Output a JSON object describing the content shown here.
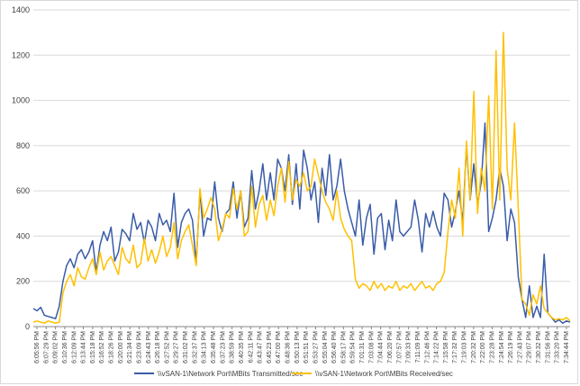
{
  "chart_data": {
    "type": "line",
    "title": "",
    "xlabel": "",
    "ylabel": "",
    "ylim": [
      0,
      1400
    ],
    "yticks": [
      0,
      200,
      400,
      600,
      800,
      1000,
      1200,
      1400
    ],
    "grid": true,
    "legend": "bottom",
    "x_tick_labels": [
      "6:05:56 PM",
      "6:07:29 PM",
      "6:09:02 PM",
      "6:10:36 PM",
      "6:12:09 PM",
      "6:13:44 PM",
      "6:15:18 PM",
      "6:16:52 PM",
      "6:18:26 PM",
      "6:20:00 PM",
      "6:21:34 PM",
      "6:23:09 PM",
      "6:24:43 PM",
      "6:26:18 PM",
      "6:27:52 PM",
      "6:29:27 PM",
      "6:31:02 PM",
      "6:32:37 PM",
      "6:34:13 PM",
      "6:35:48 PM",
      "6:37:23 PM",
      "6:38:59 PM",
      "6:40:35 PM",
      "6:42:11 PM",
      "6:43:47 PM",
      "6:45:23 PM",
      "6:47:00 PM",
      "6:48:36 PM",
      "6:50:13 PM",
      "6:51:51 PM",
      "6:53:27 PM",
      "6:55:04 PM",
      "6:56:40 PM",
      "6:58:17 PM",
      "6:59:54 PM",
      "7:01:31 PM",
      "7:03:08 PM",
      "7:04:44 PM",
      "7:06:20 PM",
      "7:07:57 PM",
      "7:09:33 PM",
      "7:11:09 PM",
      "7:12:46 PM",
      "7:14:22 PM",
      "7:15:58 PM",
      "7:17:32 PM",
      "7:19:03 PM",
      "7:20:32 PM",
      "7:22:00 PM",
      "7:23:28 PM",
      "7:24:54 PM",
      "7:26:19 PM",
      "7:27:43 PM",
      "7:29:07 PM",
      "7:30:32 PM",
      "7:31:56 PM",
      "7:33:20 PM",
      "7:34:44 PM"
    ],
    "series": [
      {
        "name": "\\\\vSAN-1\\Network Port\\MBits Transmitted/sec",
        "color": "#3a5ca8",
        "values": [
          80,
          70,
          85,
          50,
          45,
          40,
          35,
          90,
          200,
          270,
          300,
          260,
          320,
          340,
          300,
          330,
          380,
          240,
          360,
          420,
          380,
          440,
          290,
          330,
          430,
          410,
          380,
          500,
          430,
          460,
          370,
          470,
          440,
          380,
          500,
          450,
          470,
          420,
          590,
          350,
          460,
          500,
          520,
          470,
          280,
          600,
          400,
          480,
          470,
          640,
          480,
          420,
          500,
          520,
          640,
          480,
          600,
          440,
          480,
          690,
          520,
          600,
          720,
          560,
          680,
          560,
          740,
          700,
          600,
          760,
          540,
          720,
          520,
          780,
          700,
          560,
          640,
          460,
          700,
          580,
          760,
          560,
          620,
          740,
          600,
          520,
          460,
          400,
          560,
          360,
          480,
          540,
          320,
          480,
          500,
          340,
          470,
          380,
          560,
          420,
          400,
          420,
          440,
          560,
          470,
          330,
          500,
          440,
          510,
          440,
          400,
          590,
          560,
          440,
          510,
          600,
          460,
          800,
          560,
          720,
          540,
          640,
          900,
          420,
          480,
          560,
          700,
          620,
          380,
          520,
          460,
          220,
          120,
          40,
          180,
          40,
          90,
          40,
          320,
          60,
          40,
          20,
          30,
          15,
          25,
          20
        ]
      },
      {
        "name": "\\\\vSAN-1\\Network Port\\MBits Received/sec",
        "color": "#ffc000",
        "values": [
          20,
          25,
          20,
          15,
          25,
          20,
          15,
          20,
          150,
          200,
          230,
          180,
          260,
          220,
          210,
          260,
          300,
          230,
          330,
          250,
          290,
          310,
          270,
          230,
          350,
          300,
          280,
          360,
          260,
          280,
          390,
          290,
          340,
          280,
          330,
          400,
          310,
          350,
          460,
          300,
          380,
          420,
          450,
          360,
          270,
          610,
          480,
          520,
          570,
          520,
          380,
          430,
          500,
          480,
          610,
          520,
          600,
          400,
          420,
          620,
          440,
          540,
          580,
          470,
          560,
          490,
          620,
          700,
          550,
          730,
          560,
          650,
          620,
          680,
          600,
          620,
          740,
          670,
          600,
          550,
          520,
          470,
          600,
          480,
          430,
          400,
          380,
          210,
          170,
          190,
          180,
          160,
          200,
          170,
          190,
          160,
          180,
          170,
          200,
          160,
          180,
          170,
          190,
          160,
          180,
          200,
          170,
          180,
          160,
          190,
          200,
          240,
          420,
          560,
          480,
          700,
          400,
          820,
          560,
          1040,
          500,
          700,
          600,
          1020,
          520,
          1220,
          560,
          1300,
          700,
          560,
          900,
          520,
          120,
          100,
          50,
          140,
          100,
          180,
          80,
          60,
          40,
          30,
          35,
          30,
          40,
          25
        ]
      }
    ]
  }
}
